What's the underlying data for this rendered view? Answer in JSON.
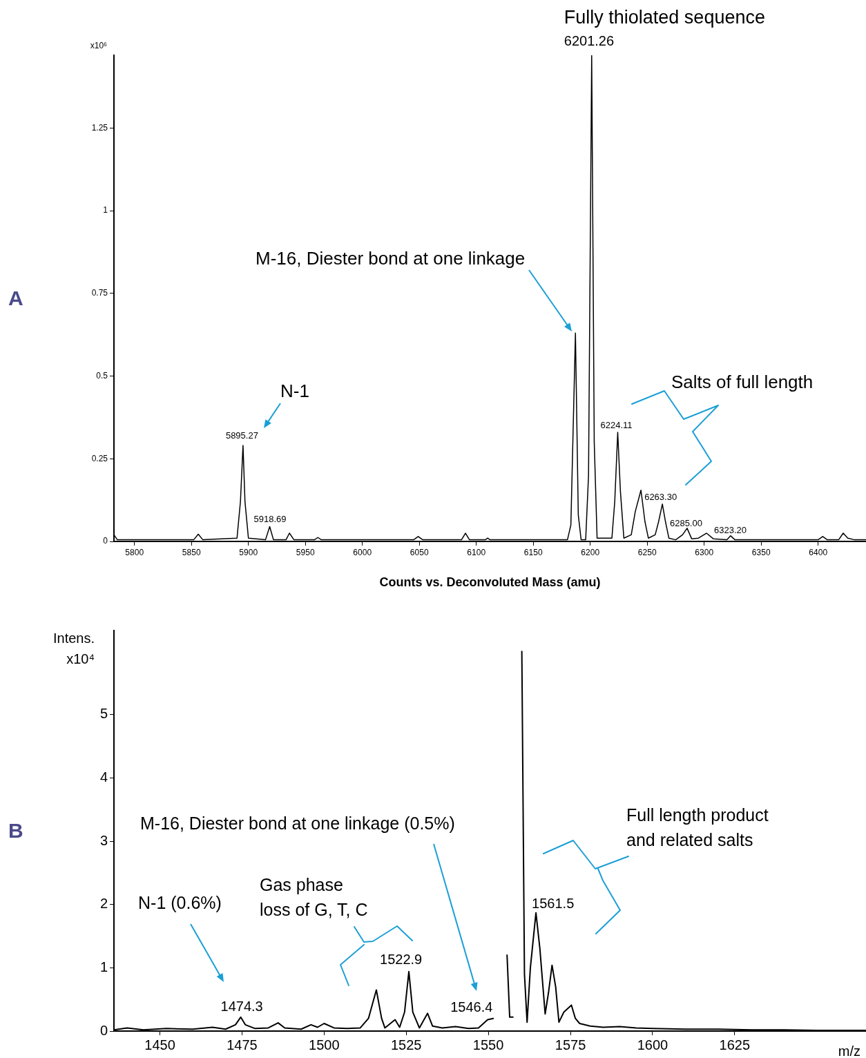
{
  "chart_data": [
    {
      "type": "line",
      "title": "A",
      "xlabel": "Counts vs. Deconvoluted Mass (amu)",
      "ylabel": "x10⁶",
      "xlim": [
        5782,
        6442
      ],
      "ylim": [
        0,
        1.47
      ],
      "xticks": [
        5800,
        5850,
        5900,
        5950,
        6000,
        6050,
        6100,
        6150,
        6200,
        6250,
        6300,
        6350,
        6400
      ],
      "yticks": [
        0,
        0.25,
        0.5,
        0.75,
        1,
        1.25
      ],
      "grid": false,
      "legend": false,
      "marker": "none",
      "x": [
        5782,
        5785,
        5852,
        5856,
        5860,
        5890,
        5893,
        5895.27,
        5897,
        5900,
        5915,
        5918.69,
        5922,
        5933,
        5936,
        5940,
        5958,
        5961,
        5964,
        6045,
        6049,
        6053,
        6087,
        6090.5,
        6094,
        6108,
        6110,
        6112,
        6180,
        6183,
        6187,
        6189.5,
        6192,
        6196,
        6198.5,
        6201.26,
        6203.5,
        6206,
        6219,
        6221.5,
        6224.11,
        6226.5,
        6229.5,
        6236,
        6239.5,
        6244.5,
        6248,
        6251,
        6257,
        6260,
        6263.3,
        6266,
        6269,
        6275,
        6281,
        6285,
        6289,
        6295,
        6302,
        6308,
        6320,
        6323.2,
        6327,
        6400,
        6404,
        6408,
        6418,
        6422,
        6426,
        6432,
        6442
      ],
      "series": [
        {
          "color": "#000000",
          "values": [
            0.02,
            0.005,
            0.005,
            0.022,
            0.005,
            0.01,
            0.12,
            0.29,
            0.12,
            0.01,
            0.005,
            0.045,
            0.005,
            0.005,
            0.025,
            0.005,
            0.005,
            0.012,
            0.005,
            0.005,
            0.015,
            0.005,
            0.005,
            0.025,
            0.005,
            0.005,
            0.01,
            0.005,
            0.005,
            0.05,
            0.63,
            0.08,
            0.005,
            0.005,
            0.2,
            1.47,
            0.3,
            0.01,
            0.01,
            0.12,
            0.33,
            0.15,
            0.01,
            0.02,
            0.09,
            0.155,
            0.06,
            0.01,
            0.02,
            0.06,
            0.113,
            0.06,
            0.01,
            0.005,
            0.02,
            0.04,
            0.008,
            0.01,
            0.025,
            0.008,
            0.005,
            0.017,
            0.005,
            0.005,
            0.015,
            0.005,
            0.005,
            0.025,
            0.01,
            0.005,
            0.005
          ]
        }
      ],
      "annotations": [
        {
          "text": "Fully thiolated sequence",
          "x": 6201.26,
          "y": 1.47
        },
        {
          "text": "6201.26",
          "x": 6201.26,
          "y": 1.47
        },
        "M-16, Diester bond at one linkage",
        "N-1",
        {
          "text": "5895.27",
          "x": 5895.27,
          "y": 0.29
        },
        {
          "text": "5918.69",
          "x": 5918.69,
          "y": 0.045
        },
        {
          "text": "6224.11",
          "x": 6224.11,
          "y": 0.33
        },
        {
          "text": "6263.30",
          "x": 6263.3,
          "y": 0.113
        },
        {
          "text": "6285.00",
          "x": 6285,
          "y": 0.04
        },
        {
          "text": "6323.20",
          "x": 6323.2,
          "y": 0.017
        },
        "Salts of full length"
      ]
    },
    {
      "type": "line",
      "title": "B",
      "xlabel": "m/z",
      "ylabel": "Intens.\nx10⁴",
      "xlim": [
        1436,
        1665
      ],
      "ylim": [
        0,
        6.33
      ],
      "xticks": [
        1450,
        1475,
        1500,
        1525,
        1550,
        1575,
        1600,
        1625
      ],
      "yticks": [
        0,
        1,
        2,
        3,
        4,
        5
      ],
      "grid": false,
      "legend": false,
      "marker": "none",
      "x": [
        1436,
        1440,
        1445,
        1452,
        1460,
        1466,
        1470,
        1473,
        1474.6,
        1476,
        1479,
        1483,
        1486,
        1488,
        1493,
        1496,
        1498,
        1500,
        1503,
        1507,
        1511,
        1513.5,
        1515.9,
        1517.5,
        1518.5,
        1521.6,
        1523,
        1524.5,
        1525.8,
        1527,
        1529,
        1531.5,
        1533,
        1536,
        1540,
        1544,
        1547,
        1549.8,
        1551.5,
        1552.5,
        1554,
        1555.7,
        1556.5,
        1557.5,
        1558.2,
        1559.5,
        1560.2,
        1561,
        1561.8,
        1562.8,
        1564.5,
        1565.7,
        1567.3,
        1568.3,
        1569.4,
        1570.5,
        1571.5,
        1573,
        1575.3,
        1576.5,
        1577.8,
        1581,
        1585,
        1590,
        1595,
        1600,
        1610,
        1620,
        1630,
        1640,
        1650,
        1660,
        1665
      ],
      "series": [
        {
          "color": "#000000",
          "values": [
            0.02,
            0.05,
            0.02,
            0.04,
            0.03,
            0.06,
            0.03,
            0.1,
            0.22,
            0.1,
            0.04,
            0.05,
            0.13,
            0.05,
            0.03,
            0.1,
            0.06,
            0.12,
            0.05,
            0.04,
            0.05,
            0.2,
            0.65,
            0.2,
            0.05,
            0.18,
            0.06,
            0.3,
            0.94,
            0.3,
            0.05,
            0.28,
            0.08,
            0.05,
            0.07,
            0.04,
            0.05,
            0.18,
            0.2,
            null,
            null,
            1.2,
            0.22,
            0.22,
            null,
            null,
            6.0,
            0.9,
            0.14,
            1.0,
            1.87,
            1.3,
            0.27,
            0.6,
            1.04,
            0.7,
            0.14,
            0.3,
            0.41,
            0.2,
            0.12,
            0.08,
            0.06,
            0.07,
            0.05,
            0.04,
            0.03,
            0.03,
            0.02,
            0.02,
            0.01,
            0.01,
            0.01
          ]
        }
      ],
      "annotations": [
        "N-1 (0.6%)",
        {
          "text": "1474.3",
          "x": 1474.6,
          "y": 0.22
        },
        "Gas phase\nloss of G, T, C",
        {
          "text": "1522.9",
          "x": 1525.8,
          "y": 0.94
        },
        "M-16, Diester bond at one linkage (0.5%)",
        {
          "text": "1546.4",
          "x": 1549.8,
          "y": 0.18
        },
        "Full length product\nand related salts",
        {
          "text": "1561.5",
          "x": 1564.5,
          "y": 1.87
        }
      ]
    }
  ]
}
